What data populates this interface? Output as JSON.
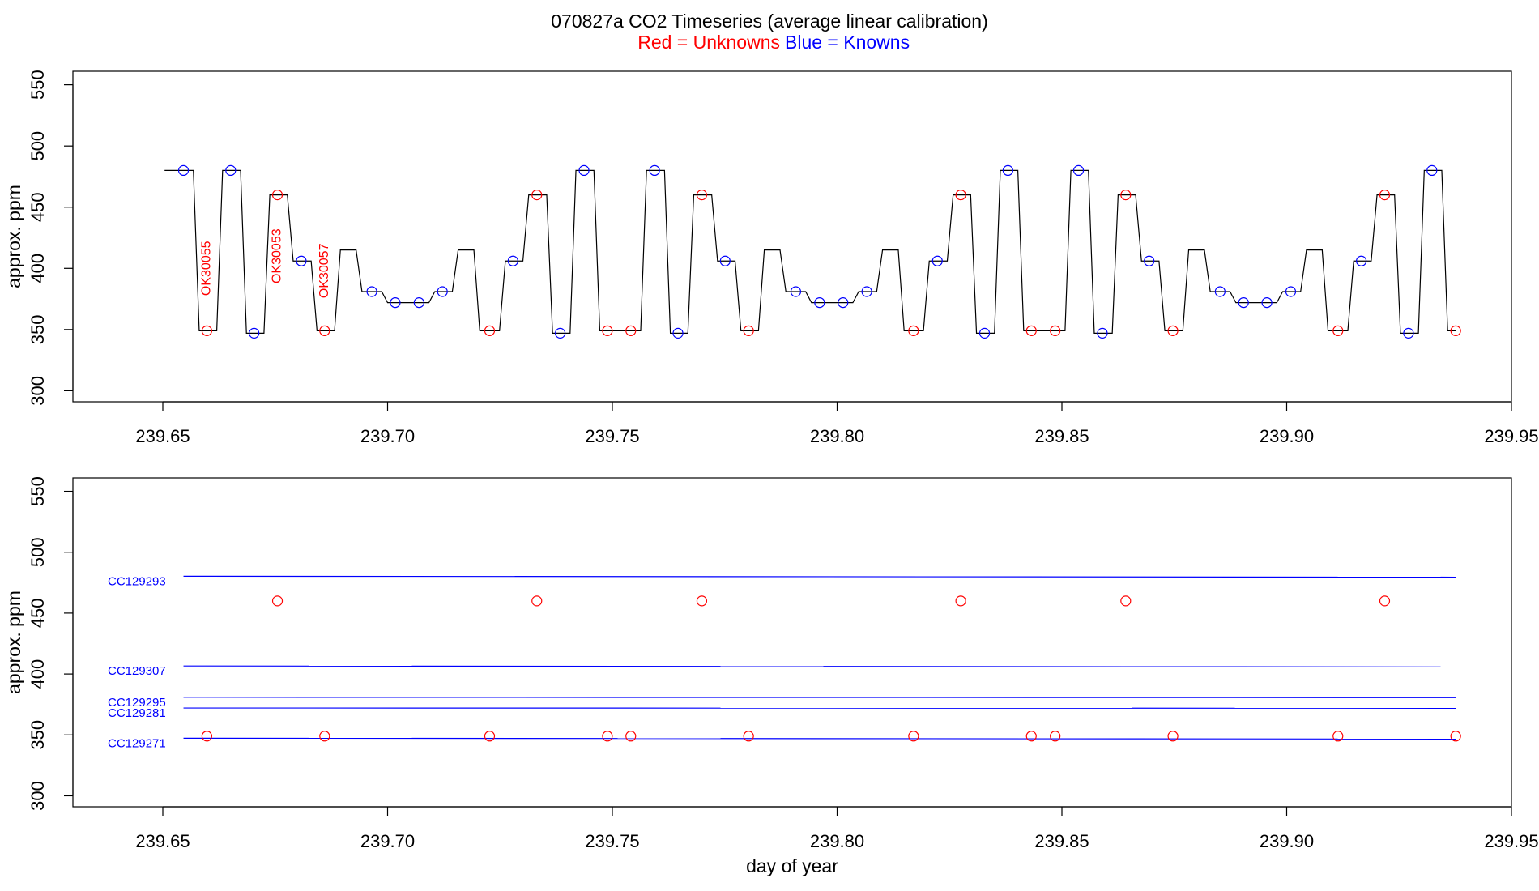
{
  "title": "070827a   CO2 Timeseries (average linear calibration)",
  "subtitle": [
    "Red = Unknowns",
    "Blue = Knowns"
  ],
  "subtitle_colors": [
    "#ff0000",
    "#0000ff"
  ],
  "chart_data": [
    {
      "type": "line",
      "ylabel": "approx. ppm",
      "xlim": [
        239.63,
        239.95
      ],
      "ylim": [
        291,
        561
      ],
      "xticks": [
        239.65,
        {
          "value": 239.7,
          "label": "239.70"
        },
        239.75,
        {
          "value": 239.8,
          "label": "239.80"
        },
        239.85,
        {
          "value": 239.9,
          "label": "239.90"
        },
        239.95
      ],
      "yticks": [
        300,
        350,
        400,
        450,
        500,
        550
      ],
      "series": [
        {
          "color": "#000000",
          "x": [
            239.6504,
            239.6568,
            239.6581,
            239.662,
            239.6633,
            239.6673,
            239.6686,
            239.6725,
            239.6738,
            239.6777,
            239.679,
            239.683,
            239.6843,
            239.6882,
            239.6895,
            239.693,
            239.6943,
            239.6987,
            239.7,
            239.7092,
            239.7105,
            239.7144,
            239.7157,
            239.7192,
            239.7205,
            239.7249,
            239.7262,
            239.7301,
            239.7314,
            239.7354,
            239.7367,
            239.7406,
            239.7419,
            239.7459,
            239.7472,
            239.7563,
            239.7576,
            239.7616,
            239.7629,
            239.7668,
            239.7681,
            239.7721,
            239.7734,
            239.7773,
            239.7786,
            239.7825,
            239.7838,
            239.7873,
            239.7886,
            239.793,
            239.7943,
            239.8035,
            239.8048,
            239.8088,
            239.8101,
            239.8136,
            239.8149,
            239.8192,
            239.8205,
            239.8245,
            239.8258,
            239.8297,
            239.831,
            239.835,
            239.8363,
            239.8402,
            239.8415,
            239.8507,
            239.852,
            239.8559,
            239.8572,
            239.8612,
            239.8625,
            239.8664,
            239.8677,
            239.8716,
            239.8729,
            239.8769,
            239.8782,
            239.8817,
            239.883,
            239.8874,
            239.8887,
            239.8978,
            239.8991,
            239.9031,
            239.9044,
            239.9079,
            239.9092,
            239.9136,
            239.9149,
            239.9188,
            239.9201,
            239.924,
            239.9253,
            239.9293,
            239.9306,
            239.9345,
            239.9358,
            239.9376
          ],
          "values": [
            480,
            480,
            349,
            349,
            480,
            480,
            347,
            347,
            460,
            460,
            406,
            406,
            349,
            349,
            415,
            415,
            381,
            381,
            372,
            372,
            381,
            381,
            415,
            415,
            349,
            349,
            406,
            406,
            460,
            460,
            347,
            347,
            480,
            480,
            349,
            349,
            480,
            480,
            347,
            347,
            460,
            460,
            406,
            406,
            349,
            349,
            415,
            415,
            381,
            381,
            372,
            372,
            381,
            381,
            415,
            415,
            349,
            349,
            406,
            406,
            460,
            460,
            347,
            347,
            480,
            480,
            349,
            349,
            480,
            480,
            347,
            347,
            460,
            460,
            406,
            406,
            349,
            349,
            415,
            415,
            381,
            381,
            372,
            372,
            381,
            381,
            415,
            415,
            349,
            349,
            406,
            406,
            460,
            460,
            347,
            347,
            480,
            480,
            349,
            349
          ]
        },
        {
          "color": "#ff0000",
          "marker": "circle",
          "x": [
            239.6598,
            239.6755,
            239.686,
            239.7227,
            239.7332,
            239.7489,
            239.7541,
            239.7699,
            239.7803,
            239.817,
            239.8275,
            239.8432,
            239.8485,
            239.8642,
            239.8747,
            239.9114,
            239.9218,
            239.9376
          ],
          "values": [
            349,
            460,
            349,
            349,
            460,
            349,
            349,
            460,
            349,
            349,
            460,
            349,
            349,
            460,
            349,
            349,
            460,
            349
          ]
        },
        {
          "color": "#0000ff",
          "marker": "circle",
          "x": [
            239.6546,
            239.6651,
            239.6703,
            239.6808,
            239.6965,
            239.7017,
            239.707,
            239.7122,
            239.7279,
            239.7384,
            239.7437,
            239.7594,
            239.7646,
            239.7751,
            239.7908,
            239.7961,
            239.8013,
            239.8066,
            239.8223,
            239.8328,
            239.838,
            239.8537,
            239.859,
            239.8694,
            239.8852,
            239.8904,
            239.8956,
            239.9009,
            239.9166,
            239.9271,
            239.9323
          ],
          "values": [
            480,
            480,
            347,
            406,
            381,
            372,
            372,
            381,
            406,
            347,
            480,
            480,
            347,
            406,
            381,
            372,
            372,
            381,
            406,
            347,
            480,
            480,
            347,
            406,
            381,
            372,
            372,
            381,
            406,
            347,
            480
          ]
        }
      ],
      "annotations": [
        {
          "text": "OK30055",
          "x": 239.6598,
          "y": 400,
          "color": "#ff0000"
        },
        {
          "text": "OK30053",
          "x": 239.6755,
          "y": 410,
          "color": "#ff0000"
        },
        {
          "text": "OK30057",
          "x": 239.686,
          "y": 398,
          "color": "#ff0000"
        }
      ]
    },
    {
      "type": "line",
      "ylabel": "approx. ppm",
      "xlabel": "day of year",
      "xlim": [
        239.63,
        239.95
      ],
      "ylim": [
        291,
        561
      ],
      "xticks": [
        239.65,
        {
          "value": 239.7,
          "label": "239.70"
        },
        239.75,
        {
          "value": 239.8,
          "label": "239.80"
        },
        239.85,
        {
          "value": 239.9,
          "label": "239.90"
        },
        239.95
      ],
      "yticks": [
        300,
        350,
        400,
        450,
        500,
        550
      ],
      "series": [
        {
          "name": "CC129293",
          "color": "#0000ff",
          "x": [
            239.6546,
            239.9376
          ],
          "values": [
            480.3,
            479.5
          ]
        },
        {
          "name": "CC129307",
          "color": "#0000ff",
          "x": [
            239.6546,
            239.9376
          ],
          "values": [
            406.6,
            405.8
          ]
        },
        {
          "name": "CC129295",
          "color": "#0000ff",
          "x": [
            239.6546,
            239.9376
          ],
          "values": [
            380.9,
            380.6
          ]
        },
        {
          "name": "CC129281",
          "color": "#0000ff",
          "x": [
            239.6546,
            239.9376
          ],
          "values": [
            372.1,
            371.9
          ]
        },
        {
          "name": "CC129271",
          "color": "#0000ff",
          "x": [
            239.6546,
            239.9376
          ],
          "values": [
            347.3,
            346.6
          ]
        },
        {
          "color": "#ff0000",
          "marker": "circle",
          "x": [
            239.6598,
            239.6755,
            239.686,
            239.7227,
            239.7332,
            239.7489,
            239.7541,
            239.7699,
            239.7803,
            239.817,
            239.8275,
            239.8432,
            239.8485,
            239.8642,
            239.8747,
            239.9114,
            239.9218,
            239.9376
          ],
          "values": [
            349,
            460,
            349,
            349,
            460,
            349,
            349,
            460,
            349,
            349,
            460,
            349,
            349,
            460,
            349,
            349,
            460,
            349
          ]
        }
      ]
    }
  ]
}
